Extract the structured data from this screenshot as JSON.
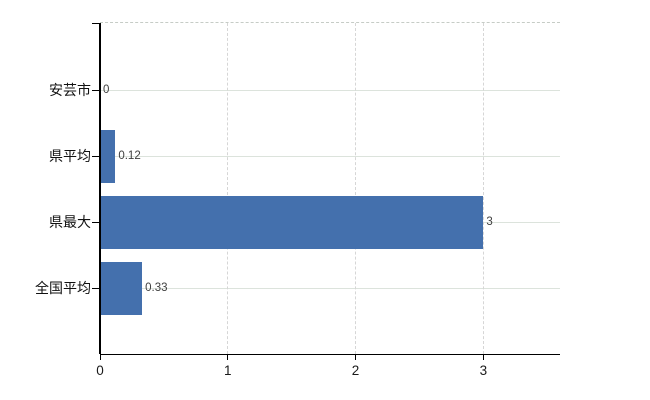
{
  "chart_data": {
    "type": "bar",
    "orientation": "horizontal",
    "title": "",
    "categories": [
      "安芸市",
      "県平均",
      "県最大",
      "全国平均"
    ],
    "values": [
      0,
      0.12,
      3,
      0.33
    ],
    "value_labels": [
      "0",
      "0.12",
      "3",
      "0.33"
    ],
    "x_ticks": [
      0,
      1,
      2,
      3
    ],
    "x_tick_labels": [
      "0",
      "1",
      "2",
      "3"
    ],
    "xlim": [
      0,
      3.6
    ],
    "grid": true,
    "legend": false,
    "colors": {
      "bar": "#4470ad",
      "h_grid": "#dce3dc",
      "v_grid": "#d6d6d6",
      "top_border": "#c6ccc6",
      "axis": "#000000",
      "value_label": "#404040",
      "category_label": "#111111",
      "tick_label": "#1a1a1a",
      "background": "#ffffff"
    }
  }
}
